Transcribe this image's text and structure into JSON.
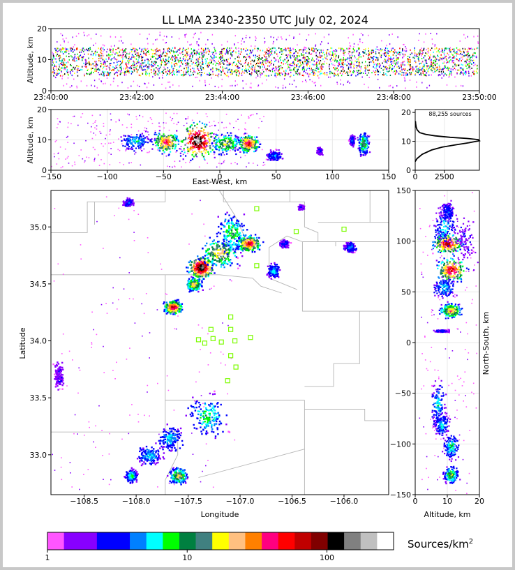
{
  "title": "LL LMA 2340-2350 UTC July 02, 2024",
  "source_count": "88,255 sources",
  "colorbar_label": "Sources/km",
  "colorbar_label_sup": "2",
  "colors": {
    "frame": "#c8c8c8",
    "county_lines": "#b4b4b4",
    "station_marker": "#7cfc00",
    "density_scale": [
      "#ff55ff",
      "#8800ff",
      "#8800ff",
      "#0000ff",
      "#0000ff",
      "#0080ff",
      "#00ffff",
      "#00ff00",
      "#008040",
      "#408080",
      "#ffff00",
      "#ffc080",
      "#ff8000",
      "#ff0080",
      "#ff0000",
      "#c00000",
      "#800000",
      "#000000",
      "#808080",
      "#c0c0c0",
      "#ffffff"
    ]
  },
  "chart_data": [
    {
      "type": "scatter",
      "name_ref": "time-height",
      "xlabel": "",
      "ylabel": "Altitude, km",
      "xlim": [
        "23:40:00",
        "23:50:00"
      ],
      "ylim": [
        0,
        20
      ],
      "xticks": [
        "23:40:00",
        "23:42:00",
        "23:44:00",
        "23:46:00",
        "23:48:00",
        "23:50:00"
      ],
      "yticks": [
        0,
        10,
        20
      ],
      "altitude_core_km": [
        5,
        14
      ]
    },
    {
      "type": "heatmap",
      "name_ref": "east-west-altitude",
      "xlabel": "East-West, km",
      "ylabel": "Altitude, km",
      "xlim": [
        -150,
        150
      ],
      "ylim": [
        0,
        20
      ],
      "xticks": [
        -150,
        -100,
        -50,
        0,
        50,
        100,
        150
      ],
      "yticks": [
        0,
        10,
        20
      ],
      "blobs": [
        {
          "x": -75,
          "z": 10,
          "dx": 12,
          "dz": 2.5,
          "level": 6
        },
        {
          "x": -48,
          "z": 9.5,
          "dx": 10,
          "dz": 3,
          "level": 14
        },
        {
          "x": -20,
          "z": 10,
          "dx": 13,
          "dz": 5,
          "level": 19
        },
        {
          "x": 5,
          "z": 9,
          "dx": 12,
          "dz": 3,
          "level": 10
        },
        {
          "x": 25,
          "z": 9,
          "dx": 8,
          "dz": 2.5,
          "level": 15
        },
        {
          "x": 48,
          "z": 5,
          "dx": 6,
          "dz": 1.5,
          "level": 5
        },
        {
          "x": 88,
          "z": 6.5,
          "dx": 2,
          "dz": 1,
          "level": 3
        },
        {
          "x": 117,
          "z": 10,
          "dx": 2,
          "dz": 1.5,
          "level": 4
        },
        {
          "x": 127,
          "z": 9,
          "dx": 4,
          "dz": 3,
          "level": 9
        }
      ]
    },
    {
      "type": "line",
      "name_ref": "altitude-histogram",
      "xlabel": "",
      "ylabel": "",
      "xlim": [
        0,
        5500
      ],
      "ylim": [
        0,
        21
      ],
      "xticks": [
        0,
        2500
      ],
      "yticks": [
        0,
        10,
        20
      ],
      "x": [
        0,
        150,
        600,
        1400,
        2300,
        3500,
        4600,
        5500,
        5400,
        4400,
        3000,
        1700,
        900,
        380,
        160,
        80,
        40,
        20
      ],
      "y": [
        3,
        4,
        5.5,
        7,
        8,
        8.8,
        9.5,
        10.2,
        10.6,
        11,
        11.4,
        11.9,
        12.4,
        13,
        14,
        15,
        16,
        17
      ]
    },
    {
      "type": "heatmap",
      "name_ref": "plan-view",
      "xlabel": "Longitude",
      "ylabel": "Latitude",
      "xlim": [
        -108.82,
        -105.57
      ],
      "ylim": [
        32.65,
        35.32
      ],
      "xticks": [
        -108.5,
        -108.0,
        -107.5,
        -107.0,
        -106.5,
        -106.0
      ],
      "yticks": [
        33.0,
        33.5,
        34.0,
        34.5,
        35.0
      ],
      "blobs": [
        {
          "lon": -107.38,
          "lat": 34.65,
          "dlon": 0.1,
          "dlat": 0.08,
          "level": 19
        },
        {
          "lon": -107.2,
          "lat": 34.78,
          "dlon": 0.16,
          "dlat": 0.12,
          "level": 11
        },
        {
          "lon": -107.08,
          "lat": 34.95,
          "dlon": 0.12,
          "dlat": 0.15,
          "level": 8
        },
        {
          "lon": -106.92,
          "lat": 34.86,
          "dlon": 0.1,
          "dlat": 0.06,
          "level": 15
        },
        {
          "lon": -107.45,
          "lat": 34.5,
          "dlon": 0.06,
          "dlat": 0.05,
          "level": 12
        },
        {
          "lon": -107.65,
          "lat": 34.3,
          "dlon": 0.07,
          "dlat": 0.05,
          "level": 16
        },
        {
          "lon": -106.68,
          "lat": 34.62,
          "dlon": 0.05,
          "dlat": 0.05,
          "level": 6
        },
        {
          "lon": -106.58,
          "lat": 34.86,
          "dlon": 0.04,
          "dlat": 0.03,
          "level": 4
        },
        {
          "lon": -105.95,
          "lat": 34.83,
          "dlon": 0.05,
          "dlat": 0.04,
          "level": 5
        },
        {
          "lon": -108.08,
          "lat": 35.22,
          "dlon": 0.04,
          "dlat": 0.03,
          "level": 4
        },
        {
          "lon": -106.42,
          "lat": 35.18,
          "dlon": 0.02,
          "dlat": 0.02,
          "level": 3
        },
        {
          "lon": -107.32,
          "lat": 33.35,
          "dlon": 0.16,
          "dlat": 0.15,
          "level": 7
        },
        {
          "lon": -107.68,
          "lat": 33.15,
          "dlon": 0.1,
          "dlat": 0.1,
          "level": 6
        },
        {
          "lon": -107.88,
          "lat": 33.0,
          "dlon": 0.1,
          "dlat": 0.07,
          "level": 6
        },
        {
          "lon": -108.05,
          "lat": 32.82,
          "dlon": 0.05,
          "dlat": 0.05,
          "level": 7
        },
        {
          "lon": -107.6,
          "lat": 32.82,
          "dlon": 0.07,
          "dlat": 0.06,
          "level": 11
        },
        {
          "lon": -108.75,
          "lat": 33.7,
          "dlon": 0.04,
          "dlat": 0.1,
          "level": 2
        }
      ],
      "stations": [
        {
          "lon": -106.84,
          "lat": 35.16
        },
        {
          "lon": -106.46,
          "lat": 34.96
        },
        {
          "lon": -106.0,
          "lat": 34.98
        },
        {
          "lon": -106.84,
          "lat": 34.66
        },
        {
          "lon": -107.09,
          "lat": 34.21
        },
        {
          "lon": -107.28,
          "lat": 34.1
        },
        {
          "lon": -107.09,
          "lat": 34.1
        },
        {
          "lon": -107.4,
          "lat": 34.01
        },
        {
          "lon": -107.26,
          "lat": 34.02
        },
        {
          "lon": -107.34,
          "lat": 33.98
        },
        {
          "lon": -107.18,
          "lat": 33.99
        },
        {
          "lon": -107.05,
          "lat": 34.0
        },
        {
          "lon": -106.9,
          "lat": 34.03
        },
        {
          "lon": -107.09,
          "lat": 33.87
        },
        {
          "lon": -107.04,
          "lat": 33.77
        },
        {
          "lon": -107.12,
          "lat": 33.65
        }
      ]
    },
    {
      "type": "heatmap",
      "name_ref": "altitude-north-south",
      "xlabel": "Altitude, km",
      "ylabel": "North-South, km",
      "xlim": [
        0,
        20
      ],
      "ylim": [
        -150,
        150
      ],
      "xticks": [
        0,
        10,
        20
      ],
      "yticks": [
        -150,
        -100,
        -50,
        0,
        50,
        100,
        150
      ],
      "blobs": [
        {
          "z": 10,
          "y": 98,
          "dz": 4,
          "dy": 8,
          "level": 16
        },
        {
          "z": 11,
          "y": 72,
          "dz": 4,
          "dy": 10,
          "level": 15
        },
        {
          "z": 9,
          "y": 115,
          "dz": 3,
          "dy": 15,
          "level": 6
        },
        {
          "z": 10,
          "y": 130,
          "dz": 2,
          "dy": 8,
          "level": 4
        },
        {
          "z": 9,
          "y": 55,
          "dz": 3,
          "dy": 8,
          "level": 6
        },
        {
          "z": 11,
          "y": 32,
          "dz": 3,
          "dy": 6,
          "level": 12
        },
        {
          "z": 15,
          "y": 100,
          "dz": 3,
          "dy": 20,
          "level": 2
        },
        {
          "z": 8,
          "y": 12,
          "dz": 2,
          "dy": 1,
          "level": 4
        },
        {
          "z": 7,
          "y": -62,
          "dz": 2,
          "dy": 18,
          "level": 6
        },
        {
          "z": 8,
          "y": -80,
          "dz": 2,
          "dy": 10,
          "level": 6
        },
        {
          "z": 11,
          "y": -102,
          "dz": 2,
          "dy": 10,
          "level": 7
        },
        {
          "z": 11,
          "y": -130,
          "dz": 2,
          "dy": 7,
          "level": 9
        }
      ]
    },
    {
      "type": "colorbar",
      "name_ref": "colorbar",
      "scale": "log",
      "xlim": [
        1,
        300
      ],
      "xticks": [
        1,
        10,
        100
      ]
    }
  ]
}
